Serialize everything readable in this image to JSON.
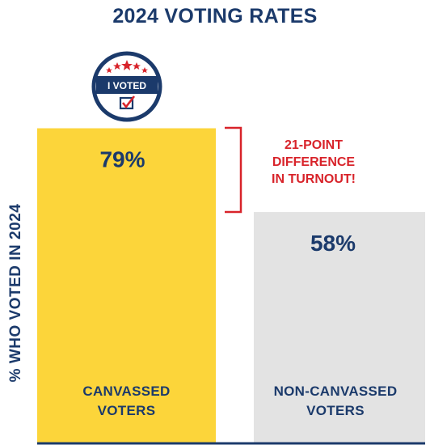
{
  "chart_data": {
    "type": "bar",
    "title": "2024 VOTING RATES",
    "ylabel": "% WHO VOTED IN 2024",
    "xlabel": "",
    "categories": [
      "CANVASSED VOTERS",
      "NON-CANVASSED VOTERS"
    ],
    "category_lines": [
      [
        "CANVASSED",
        "VOTERS"
      ],
      [
        "NON-CANVASSED",
        "VOTERS"
      ]
    ],
    "values": [
      79,
      58
    ],
    "value_labels": [
      "79%",
      "58%"
    ],
    "colors": [
      "#fcd53a",
      "#e3e3e3"
    ],
    "ylim": [
      0,
      100
    ],
    "grid": false,
    "annotation": {
      "lines": [
        "21-POINT",
        "DIFFERENCE",
        "IN TURNOUT!"
      ],
      "color": "#d8232a"
    }
  },
  "badge": {
    "text": "I VOTED",
    "icon": "checked-ballot-icon",
    "colors": {
      "ring": "#1b3a6b",
      "stars": "#d8232a"
    }
  },
  "colors": {
    "text": "#1b3a6b",
    "axis": "#1b3a6b",
    "accent": "#d8232a"
  }
}
